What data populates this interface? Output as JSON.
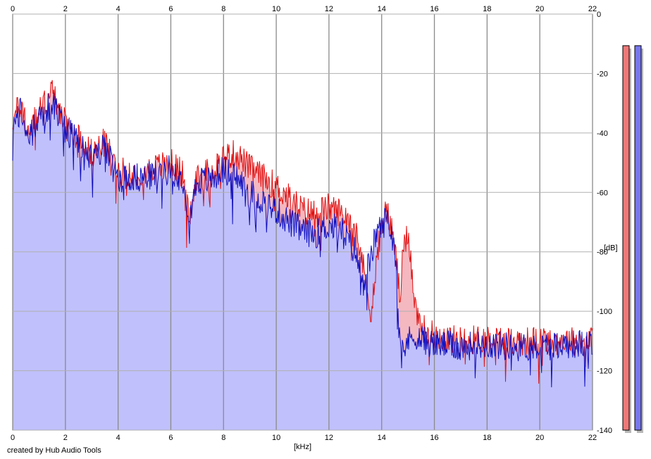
{
  "chart_data": {
    "type": "area",
    "xlabel": "[kHz]",
    "ylabel": "[dB]",
    "xlim": [
      0,
      22
    ],
    "ylim": [
      -140,
      0
    ],
    "x_ticks": [
      "0",
      "2",
      "4",
      "6",
      "8",
      "10",
      "12",
      "14",
      "16",
      "18",
      "20",
      "22"
    ],
    "y_ticks": [
      "0",
      "-20",
      "-40",
      "-60",
      "-80",
      "-100",
      "-120",
      "-140"
    ],
    "grid": true,
    "series": [
      {
        "color": "#e01010",
        "fill": "#f4b8c0",
        "points": [
          [
            0,
            -36
          ],
          [
            0.3,
            -30
          ],
          [
            0.6,
            -40
          ],
          [
            1.0,
            -33
          ],
          [
            1.5,
            -26
          ],
          [
            2.0,
            -37
          ],
          [
            2.5,
            -41
          ],
          [
            3.0,
            -47
          ],
          [
            3.5,
            -43
          ],
          [
            4.0,
            -53
          ],
          [
            5.0,
            -53
          ],
          [
            6.0,
            -50
          ],
          [
            6.5,
            -54
          ],
          [
            6.7,
            -70
          ],
          [
            7.0,
            -54
          ],
          [
            7.5,
            -53
          ],
          [
            8.0,
            -48
          ],
          [
            8.5,
            -47
          ],
          [
            9.0,
            -52
          ],
          [
            9.5,
            -55
          ],
          [
            10.0,
            -58
          ],
          [
            10.5,
            -62
          ],
          [
            11.0,
            -66
          ],
          [
            11.5,
            -67
          ],
          [
            12.0,
            -65
          ],
          [
            12.5,
            -67
          ],
          [
            13.0,
            -70
          ],
          [
            13.3,
            -85
          ],
          [
            13.6,
            -100
          ],
          [
            13.8,
            -85
          ],
          [
            14.0,
            -70
          ],
          [
            14.2,
            -66
          ],
          [
            14.5,
            -78
          ],
          [
            14.7,
            -96
          ],
          [
            14.8,
            -82
          ],
          [
            15.0,
            -73
          ],
          [
            15.3,
            -100
          ],
          [
            15.6,
            -106
          ],
          [
            16.0,
            -108
          ],
          [
            17.0,
            -110
          ],
          [
            18.0,
            -109
          ],
          [
            19.0,
            -110
          ],
          [
            20.0,
            -110
          ],
          [
            21.0,
            -110
          ],
          [
            22.0,
            -110
          ]
        ]
      },
      {
        "color": "#1010c0",
        "fill": "#c0c0fc",
        "points": [
          [
            0,
            -40
          ],
          [
            0.3,
            -32
          ],
          [
            0.6,
            -42
          ],
          [
            1.0,
            -35
          ],
          [
            1.5,
            -30
          ],
          [
            2.0,
            -39
          ],
          [
            2.5,
            -43
          ],
          [
            3.0,
            -49
          ],
          [
            3.5,
            -45
          ],
          [
            4.0,
            -55
          ],
          [
            5.0,
            -55
          ],
          [
            6.0,
            -52
          ],
          [
            6.5,
            -56
          ],
          [
            6.7,
            -68
          ],
          [
            7.0,
            -56
          ],
          [
            7.5,
            -56
          ],
          [
            8.0,
            -52
          ],
          [
            8.5,
            -55
          ],
          [
            9.0,
            -60
          ],
          [
            9.5,
            -63
          ],
          [
            10.0,
            -66
          ],
          [
            10.5,
            -70
          ],
          [
            11.0,
            -73
          ],
          [
            11.5,
            -74
          ],
          [
            12.0,
            -71
          ],
          [
            12.5,
            -73
          ],
          [
            13.0,
            -80
          ],
          [
            13.3,
            -90
          ],
          [
            13.6,
            -82
          ],
          [
            13.8,
            -73
          ],
          [
            14.0,
            -72
          ],
          [
            14.2,
            -68
          ],
          [
            14.5,
            -78
          ],
          [
            14.7,
            -108
          ],
          [
            14.8,
            -112
          ],
          [
            15.0,
            -110
          ],
          [
            15.3,
            -108
          ],
          [
            15.6,
            -110
          ],
          [
            16.0,
            -111
          ],
          [
            17.0,
            -112
          ],
          [
            18.0,
            -111
          ],
          [
            19.0,
            -112
          ],
          [
            20.0,
            -112
          ],
          [
            21.0,
            -111
          ],
          [
            22.0,
            -111
          ]
        ]
      }
    ],
    "level_meters": [
      {
        "color": "#ee7878",
        "level": 0.03
      },
      {
        "color": "#7878ee",
        "level": 0.03
      }
    ]
  },
  "credit": "created by Hub Audio Tools"
}
